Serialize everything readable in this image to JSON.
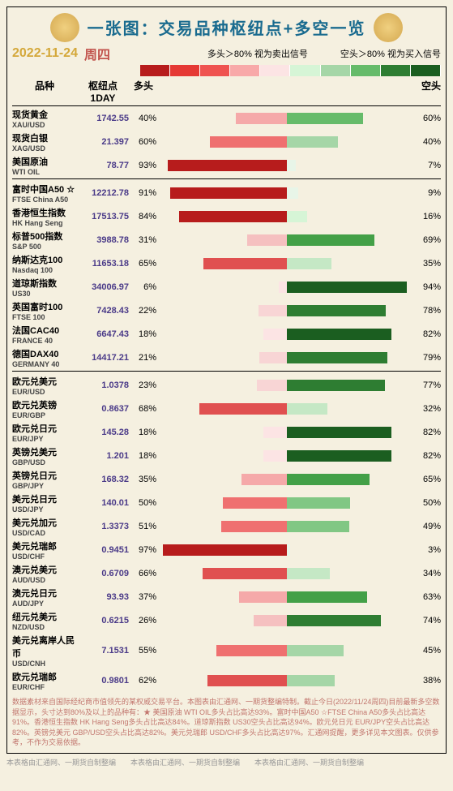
{
  "title": "一张图：交易品种枢纽点+多空一览",
  "date": "2022-11-24",
  "dow": "周四",
  "legendLong": "多头＞80% 视为卖出信号",
  "legendShort": "空头＞80% 视为买入信号",
  "hdr": {
    "name": "品种",
    "pivot": "枢纽点1DAY",
    "long": "多头",
    "short": "空头"
  },
  "gradient": [
    "#b71c1c",
    "#e53935",
    "#ef5350",
    "#f8a9a9",
    "#fce4e4",
    "#d6f5d6",
    "#a5d6a7",
    "#66bb6a",
    "#2e7d32",
    "#1b5e20"
  ],
  "longColors": {
    "91": "#b71c1c",
    "84": "#b71c1c",
    "68": "#e05050",
    "66": "#e05050",
    "65": "#e05050",
    "63": "#e05050",
    "62": "#e05050",
    "60": "#ef7070",
    "55": "#ef7070",
    "51": "#ef7070",
    "50": "#ef7070",
    "40": "#f5a9a9",
    "37": "#f5a9a9",
    "35": "#f5a9a9",
    "31": "#f5c0c0",
    "26": "#f5c0c0",
    "23": "#f8d5d5",
    "22": "#f8d5d5",
    "21": "#f8d5d5",
    "18": "#fce4e4",
    "6": "#fce4e4",
    "93": "#b71c1c",
    "97": "#b71c1c"
  },
  "shortColors": {
    "94": "#1b5e20",
    "82": "#1b5e20",
    "79": "#2e7d32",
    "78": "#2e7d32",
    "77": "#2e7d32",
    "74": "#2e7d32",
    "69": "#43a047",
    "65": "#43a047",
    "63": "#43a047",
    "60": "#66bb6a",
    "50": "#81c784",
    "49": "#81c784",
    "45": "#a5d6a7",
    "40": "#a5d6a7",
    "38": "#a5d6a7",
    "35": "#c5e8c5",
    "34": "#c5e8c5",
    "32": "#c5e8c5",
    "16": "#d6f5d6",
    "9": "#e8f5e8",
    "7": "#e8f5e8",
    "3": "#e8f5e8"
  },
  "groups": [
    [
      {
        "cn": "现货黄金",
        "en": "XAU/USD",
        "p": "1742.55",
        "l": 40,
        "s": 60
      },
      {
        "cn": "现货白银",
        "en": "XAG/USD",
        "p": "21.397",
        "l": 60,
        "s": 40
      },
      {
        "cn": "美国原油",
        "en": "WTI OIL",
        "p": "78.77",
        "l": 93,
        "s": 7
      }
    ],
    [
      {
        "cn": "富时中国A50 ☆",
        "en": "FTSE China A50",
        "p": "12212.78",
        "l": 91,
        "s": 9
      },
      {
        "cn": "香港恒生指数",
        "en": "HK Hang Seng",
        "p": "17513.75",
        "l": 84,
        "s": 16
      },
      {
        "cn": "标普500指数",
        "en": "S&P 500",
        "p": "3988.78",
        "l": 31,
        "s": 69
      },
      {
        "cn": "纳斯达克100",
        "en": "Nasdaq 100",
        "p": "11653.18",
        "l": 65,
        "s": 35
      },
      {
        "cn": "道琼斯指数",
        "en": "US30",
        "p": "34006.97",
        "l": 6,
        "s": 94
      },
      {
        "cn": "英国富时100",
        "en": "FTSE 100",
        "p": "7428.43",
        "l": 22,
        "s": 78
      },
      {
        "cn": "法国CAC40",
        "en": "FRANCE 40",
        "p": "6647.43",
        "l": 18,
        "s": 82
      },
      {
        "cn": "德国DAX40",
        "en": "GERMANY 40",
        "p": "14417.21",
        "l": 21,
        "s": 79
      }
    ],
    [
      {
        "cn": "欧元兑美元",
        "en": "EUR/USD",
        "p": "1.0378",
        "l": 23,
        "s": 77
      },
      {
        "cn": "欧元兑英镑",
        "en": "EUR/GBP",
        "p": "0.8637",
        "l": 68,
        "s": 32
      },
      {
        "cn": "欧元兑日元",
        "en": "EUR/JPY",
        "p": "145.28",
        "l": 18,
        "s": 82
      },
      {
        "cn": "英镑兑美元",
        "en": "GBP/USD",
        "p": "1.201",
        "l": 18,
        "s": 82
      },
      {
        "cn": "英镑兑日元",
        "en": "GBP/JPY",
        "p": "168.32",
        "l": 35,
        "s": 65
      },
      {
        "cn": "美元兑日元",
        "en": "USD/JPY",
        "p": "140.01",
        "l": 50,
        "s": 50
      },
      {
        "cn": "美元兑加元",
        "en": "USD/CAD",
        "p": "1.3373",
        "l": 51,
        "s": 49
      },
      {
        "cn": "美元兑瑞郎",
        "en": "USD/CHF",
        "p": "0.9451",
        "l": 97,
        "s": 3
      },
      {
        "cn": "澳元兑美元",
        "en": "AUD/USD",
        "p": "0.6709",
        "l": 66,
        "s": 34
      },
      {
        "cn": "澳元兑日元",
        "en": "AUD/JPY",
        "p": "93.93",
        "l": 37,
        "s": 63
      },
      {
        "cn": "纽元兑美元",
        "en": "NZD/USD",
        "p": "0.6215",
        "l": 26,
        "s": 74
      },
      {
        "cn": "美元兑离岸人民币",
        "en": "USD/CNH",
        "p": "7.1531",
        "l": 55,
        "s": 45
      },
      {
        "cn": "欧元兑瑞郎",
        "en": "EUR/CHF",
        "p": "0.9801",
        "l": 62,
        "s": 38
      }
    ]
  ],
  "footer": "数据素材来自国际经纪商市值领先的某权威交易平台。本图表由汇通网、一期货整编特制。截止今日(2022/11/24周四)目前最新多空数据显示，头寸达到80%及以上的品种有：★ 美国原油 WTI OIL多头占比高达93%。富时中国A50 ☆FTSE China A50多头占比高达91%。香港恒生指数 HK Hang Seng多头占比高达84%。道琼斯指数 US30空头占比高达94%。欧元兑日元 EUR/JPY空头占比高达82%。英镑兑美元 GBP/USD空头占比高达82%。美元兑瑞郎 USD/CHF多头占比高达97%。汇通网提醒，更多详见本文图表。仅供参考，不作为交易依据。",
  "footer2": "本表格由汇通网、一期货自制整编　　本表格由汇通网、一期货自制整编　　本表格由汇通网、一期货自制整编"
}
